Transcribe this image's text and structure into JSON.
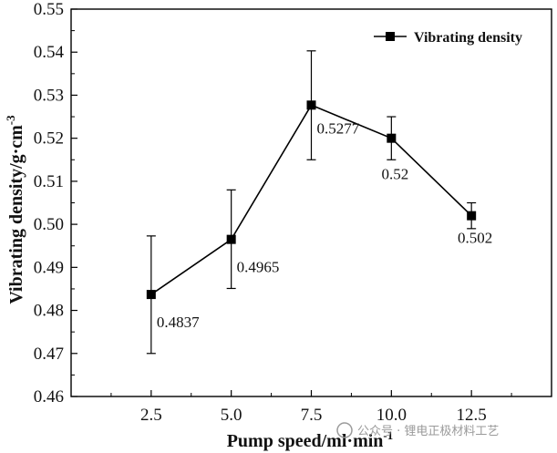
{
  "chart_data": {
    "type": "line",
    "title": "",
    "xlabel": "Pump speed/ml·min",
    "xlabel_sup": "-1",
    "ylabel": "Vibrating density/g·cm",
    "ylabel_sup": "-3",
    "x": [
      2.5,
      5.0,
      7.5,
      10.0,
      12.5
    ],
    "x_tick_labels": [
      "2.5",
      "5.0",
      "7.5",
      "10.0",
      "12.5"
    ],
    "xlim": [
      0,
      15
    ],
    "ylim": [
      0.46,
      0.55
    ],
    "y_ticks": [
      0.46,
      0.47,
      0.48,
      0.49,
      0.5,
      0.51,
      0.52,
      0.53,
      0.54,
      0.55
    ],
    "y_tick_labels": [
      "0.46",
      "0.47",
      "0.48",
      "0.49",
      "0.50",
      "0.51",
      "0.52",
      "0.53",
      "0.54",
      "0.55"
    ],
    "grid": false,
    "legend_position": "top-right",
    "series": [
      {
        "name": "Vibrating density",
        "marker": "square",
        "color": "#000000",
        "values": [
          0.4837,
          0.4965,
          0.5277,
          0.52,
          0.502
        ],
        "error_upper": [
          0.4973,
          0.508,
          0.5403,
          0.525,
          0.505
        ],
        "error_lower": [
          0.47,
          0.4851,
          0.515,
          0.515,
          0.499
        ],
        "data_labels": [
          "0.4837",
          "0.4965",
          "0.5277",
          "0.52",
          "0.502"
        ]
      }
    ]
  },
  "watermark": {
    "text": "公众号 · 锂电正极材料工艺"
  }
}
